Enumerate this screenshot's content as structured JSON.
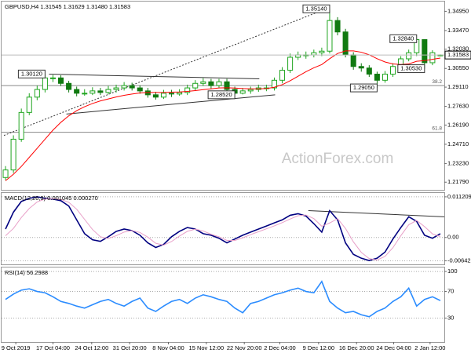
{
  "chart_data": [
    {
      "type": "candlestick",
      "title": "GBPUSD,H4  1.31545 1.31629 1.31480 1.31583",
      "x": [
        0,
        1,
        2,
        3,
        4,
        5,
        6,
        7,
        8,
        9,
        10,
        11,
        12,
        13,
        14,
        15,
        16,
        17,
        18,
        19,
        20,
        21,
        22,
        23,
        24,
        25,
        26,
        27,
        28,
        29,
        30,
        31,
        32,
        33,
        34,
        35,
        36,
        37,
        38,
        39,
        40,
        41,
        42,
        43,
        44,
        45,
        46,
        47,
        48,
        49,
        50,
        51,
        52,
        53,
        54,
        55
      ],
      "xlim": [
        -0.5,
        55.5
      ],
      "open": [
        1.2215,
        1.2273,
        1.251,
        1.2716,
        1.2834,
        1.2893,
        1.2982,
        1.2982,
        1.294,
        1.2893,
        1.2864,
        1.2864,
        1.2882,
        1.287,
        1.2893,
        1.2905,
        1.2923,
        1.2905,
        1.2882,
        1.2852,
        1.2834,
        1.2864,
        1.2858,
        1.287,
        1.2905,
        1.294,
        1.2952,
        1.2923,
        1.2952,
        1.2893,
        1.2864,
        1.2882,
        1.2893,
        1.2905,
        1.2905,
        1.2964,
        1.3041,
        1.3141,
        1.3159,
        1.3159,
        1.3176,
        1.3188,
        1.3424,
        1.3336,
        1.3159,
        1.307,
        1.3058,
        1.3011,
        1.2964,
        1.3011,
        1.307,
        1.3129,
        1.3176,
        1.3277,
        1.3099,
        1.31545
      ],
      "high": [
        1.2303,
        1.254,
        1.2746,
        1.2864,
        1.2923,
        1.3012,
        1.3005,
        1.3002,
        1.296,
        1.2915,
        1.2895,
        1.291,
        1.2905,
        1.292,
        1.293,
        1.295,
        1.2945,
        1.2925,
        1.2905,
        1.2875,
        1.289,
        1.289,
        1.2895,
        1.293,
        1.2965,
        1.298,
        1.2975,
        1.2975,
        1.2975,
        1.2915,
        1.2905,
        1.2915,
        1.293,
        1.293,
        1.2985,
        1.3065,
        1.317,
        1.3185,
        1.3185,
        1.32,
        1.3215,
        1.3514,
        1.345,
        1.336,
        1.318,
        1.3095,
        1.308,
        1.303,
        1.3035,
        1.3095,
        1.315,
        1.32,
        1.3284,
        1.328,
        1.3195,
        1.31629
      ],
      "low": [
        1.2195,
        1.225,
        1.249,
        1.2695,
        1.281,
        1.287,
        1.295,
        1.292,
        1.287,
        1.284,
        1.2845,
        1.285,
        1.285,
        1.2855,
        1.287,
        1.2885,
        1.2885,
        1.286,
        1.283,
        1.2815,
        1.282,
        1.2835,
        1.2845,
        1.285,
        1.2885,
        1.292,
        1.29,
        1.2905,
        1.287,
        1.2852,
        1.2855,
        1.286,
        1.2875,
        1.288,
        1.2885,
        1.294,
        1.302,
        1.312,
        1.313,
        1.314,
        1.315,
        1.317,
        1.331,
        1.314,
        1.3045,
        1.303,
        1.299,
        1.2905,
        1.2945,
        1.299,
        1.305,
        1.311,
        1.315,
        1.3053,
        1.308,
        1.3148
      ],
      "close": [
        1.2273,
        1.251,
        1.2716,
        1.2834,
        1.2893,
        1.2982,
        1.2982,
        1.294,
        1.2893,
        1.2864,
        1.2864,
        1.2882,
        1.287,
        1.2893,
        1.2905,
        1.2923,
        1.2905,
        1.2882,
        1.2852,
        1.2834,
        1.2864,
        1.2858,
        1.287,
        1.2905,
        1.294,
        1.2952,
        1.2923,
        1.2952,
        1.2893,
        1.2864,
        1.2882,
        1.2893,
        1.2905,
        1.2905,
        1.2964,
        1.3041,
        1.3141,
        1.3159,
        1.3159,
        1.3176,
        1.3188,
        1.3424,
        1.3336,
        1.3159,
        1.307,
        1.3058,
        1.3011,
        1.2964,
        1.3011,
        1.307,
        1.3129,
        1.3176,
        1.3277,
        1.3099,
        1.3176,
        1.31583
      ],
      "up_color": "#1fa51f",
      "down_color": "#117a11",
      "ma": {
        "color": "#ff0000",
        "values": [
          1.219,
          1.224,
          1.23,
          1.237,
          1.244,
          1.251,
          1.258,
          1.264,
          1.269,
          1.273,
          1.276,
          1.2785,
          1.2805,
          1.282,
          1.2835,
          1.2848,
          1.2858,
          1.2866,
          1.287,
          1.287,
          1.287,
          1.2872,
          1.2874,
          1.2878,
          1.2884,
          1.2892,
          1.2898,
          1.2905,
          1.2906,
          1.2904,
          1.29,
          1.2898,
          1.2898,
          1.29,
          1.291,
          1.293,
          1.296,
          1.2995,
          1.303,
          1.306,
          1.3085,
          1.313,
          1.317,
          1.319,
          1.319,
          1.318,
          1.316,
          1.313,
          1.3105,
          1.309,
          1.3085,
          1.309,
          1.311,
          1.3115,
          1.3125,
          1.3135
        ]
      },
      "ylim": [
        1.212,
        1.357
      ],
      "yticks": [
        {
          "value": 1.3495,
          "label": "1.34950"
        },
        {
          "value": 1.3347,
          "label": "1.33470"
        },
        {
          "value": 1.3203,
          "label": "1.32030"
        },
        {
          "value": 1.3055,
          "label": "1.30550"
        },
        {
          "value": 1.2911,
          "label": "1.29110"
        },
        {
          "value": 1.2763,
          "label": "1.27630"
        },
        {
          "value": 1.2619,
          "label": "1.26190"
        },
        {
          "value": 1.2471,
          "label": "1.24710"
        },
        {
          "value": 1.2323,
          "label": "1.23230"
        },
        {
          "value": 1.2179,
          "label": "1.21790"
        }
      ],
      "last_price": 1.31583,
      "hlines": [
        {
          "value": 1.2923,
          "label": "38.2"
        },
        {
          "value": 1.2563,
          "label": "61.8"
        }
      ],
      "trendlines": [
        {
          "x": [
            -0.2,
            40.5
          ],
          "y": [
            1.2539,
            1.3513
          ],
          "dashed": true
        },
        {
          "x": [
            5.5,
            32.1
          ],
          "y": [
            1.3011,
            1.2975
          ],
          "dashed": false
        },
        {
          "x": [
            7.7,
            34.1
          ],
          "y": [
            1.2704,
            1.2852
          ],
          "dashed": false
        }
      ],
      "price_labels": [
        {
          "x": 5,
          "value": 1.3012,
          "label": "1.30120"
        },
        {
          "x": 41,
          "value": 1.3514,
          "label": "1.35140"
        },
        {
          "x": 52,
          "value": 1.3284,
          "label": "1.32840"
        },
        {
          "x": 53,
          "value": 1.3053,
          "label": "1.30530"
        },
        {
          "x": 47,
          "value": 1.2905,
          "label": "1.29050"
        },
        {
          "x": 29,
          "value": 1.2852,
          "label": "1.28520"
        }
      ],
      "watermark": "ActionForex.com"
    },
    {
      "type": "line",
      "title": "MACD(12,26,9) 0.001045 0.000270",
      "x": [
        0,
        1,
        2,
        3,
        4,
        5,
        6,
        7,
        8,
        9,
        10,
        11,
        12,
        13,
        14,
        15,
        16,
        17,
        18,
        19,
        20,
        21,
        22,
        23,
        24,
        25,
        26,
        27,
        28,
        29,
        30,
        31,
        32,
        33,
        34,
        35,
        36,
        37,
        38,
        39,
        40,
        41,
        42,
        43,
        44,
        45,
        46,
        47,
        48,
        49,
        50,
        51,
        52,
        53,
        54,
        55
      ],
      "xlim": [
        -0.5,
        55.5
      ],
      "series": [
        {
          "color": "#000080",
          "values": [
            0.00233,
            0.00698,
            0.00994,
            0.01079,
            0.01121,
            0.01079,
            0.01058,
            0.01015,
            0.00867,
            0.00486,
            0.00106,
            -0.00063,
            -0.00106,
            0.00021,
            0.00169,
            0.00233,
            0.0019,
            0.00063,
            -0.00148,
            -0.00275,
            -0.0019,
            0.00021,
            0.00169,
            0.00275,
            0.00233,
            0.00106,
            0.00063,
            -0.00021,
            -0.00148,
            -0.00042,
            0.00063,
            0.00148,
            0.00233,
            0.00317,
            0.00402,
            0.00486,
            0.00613,
            0.00656,
            0.00592,
            0.00381,
            0.00148,
            0.0074,
            0.00486,
            -0.00148,
            -0.00465,
            -0.00571,
            -0.00635,
            -0.00571,
            -0.00402,
            -0.00042,
            0.00275,
            0.00571,
            0.00444,
            0.00063,
            -0.00021,
            0.001045
          ]
        },
        {
          "color": "#e8a0c8",
          "values": [
            0.0005,
            0.0025,
            0.0055,
            0.008,
            0.0098,
            0.0106,
            0.0107,
            0.0105,
            0.0097,
            0.0078,
            0.005,
            0.0022,
            0.0002,
            -0.0003,
            0.0005,
            0.0015,
            0.0019,
            0.0014,
            0.0001,
            -0.0016,
            -0.0021,
            -0.0011,
            0.0004,
            0.0017,
            0.0023,
            0.0018,
            0.0009,
            0.0002,
            -0.0008,
            -0.0008,
            -0.0001,
            0.0008,
            0.0016,
            0.0024,
            0.0032,
            0.0041,
            0.0051,
            0.006,
            0.0062,
            0.0052,
            0.0031,
            0.004,
            0.0052,
            0.0025,
            -0.0012,
            -0.0041,
            -0.0058,
            -0.0062,
            -0.0052,
            -0.0028,
            0.0005,
            0.0035,
            0.0047,
            0.003,
            0.001,
            0.00027
          ]
        }
      ],
      "ylim": [
        -0.0074,
        0.01227
      ],
      "yticks": [
        0.011209,
        {
          "value": 0,
          "label": "0.00"
        },
        -0.00642
      ],
      "grid": true,
      "trendlines": [
        {
          "x": [
            38.3,
            55.5
          ],
          "y": [
            0.0074,
            0.0057
          ],
          "dashed": false
        }
      ]
    },
    {
      "type": "line",
      "title": "RSI(14) 56.2988",
      "x": [
        0,
        1,
        2,
        3,
        4,
        5,
        6,
        7,
        8,
        9,
        10,
        11,
        12,
        13,
        14,
        15,
        16,
        17,
        18,
        19,
        20,
        21,
        22,
        23,
        24,
        25,
        26,
        27,
        28,
        29,
        30,
        31,
        32,
        33,
        34,
        35,
        36,
        37,
        38,
        39,
        40,
        41,
        42,
        43,
        44,
        45,
        46,
        47,
        48,
        49,
        50,
        51,
        52,
        53,
        54,
        55
      ],
      "xlim": [
        -0.5,
        55.5
      ],
      "series": [
        {
          "color": "#2b8cff",
          "values": [
            58,
            66,
            72,
            74,
            70,
            68,
            62,
            55,
            52,
            48,
            45,
            50,
            55,
            58,
            52,
            48,
            55,
            60,
            45,
            40,
            48,
            55,
            58,
            52,
            60,
            65,
            62,
            58,
            55,
            45,
            38,
            52,
            55,
            60,
            65,
            68,
            72,
            75,
            70,
            68,
            85,
            55,
            45,
            38,
            40,
            35,
            32,
            40,
            45,
            55,
            62,
            75,
            48,
            58,
            62,
            56.2988
          ]
        }
      ],
      "ylim": [
        -6,
        106
      ],
      "yticks": [
        100,
        70,
        30
      ],
      "grid": true,
      "xticks": [
        {
          "value": 1.3,
          "label": "9 Oct 2019"
        },
        {
          "value": 6.0,
          "label": "17 Oct 04:00"
        },
        {
          "value": 10.9,
          "label": "24 Oct 12:00"
        },
        {
          "value": 15.7,
          "label": "31 Oct 20:00"
        },
        {
          "value": 20.6,
          "label": "8 Nov 04:00"
        },
        {
          "value": 25.4,
          "label": "15 Nov 12:00"
        },
        {
          "value": 30.2,
          "label": "22 Nov 20:00"
        },
        {
          "value": 34.7,
          "label": "2 Dec 04:00"
        },
        {
          "value": 39.6,
          "label": "9 Dec 12:00"
        },
        {
          "value": 44.4,
          "label": "16 Dec 20:00"
        },
        {
          "value": 49.1,
          "label": "24 Dec 04:00"
        },
        {
          "value": 53.7,
          "label": "2 Jan 12:00"
        }
      ]
    }
  ]
}
